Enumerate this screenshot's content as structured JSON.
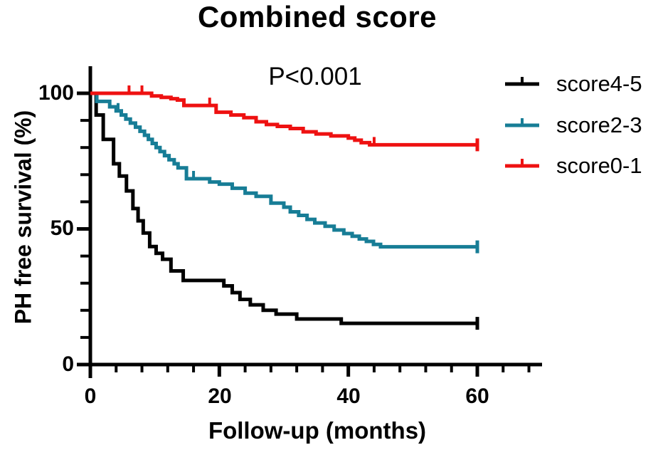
{
  "chart_data": {
    "type": "line",
    "subtype": "kaplan-meier-step",
    "title": "Combined score",
    "annotation": "P<0.001",
    "xlabel": "Follow-up (months)",
    "ylabel": "PH free survival (%)",
    "xlim": [
      0,
      70
    ],
    "ylim": [
      0,
      100
    ],
    "x_major_ticks": [
      0,
      20,
      40,
      60
    ],
    "x_minor_ticks": [
      4,
      8,
      12,
      16,
      24,
      28,
      32,
      36,
      44,
      48,
      52,
      56,
      64,
      68
    ],
    "y_major_ticks": [
      0,
      50,
      100
    ],
    "y_minor_ticks": [
      10,
      20,
      30,
      40,
      60,
      70,
      80,
      90
    ],
    "grid": false,
    "legend_position": "right",
    "axis_color": "#000000",
    "series": [
      {
        "name": "score4-5",
        "color": "#000000",
        "points": [
          [
            0,
            100
          ],
          [
            0.9,
            92
          ],
          [
            2,
            83
          ],
          [
            3.6,
            74
          ],
          [
            4.5,
            69.5
          ],
          [
            5.6,
            64
          ],
          [
            6.6,
            57.5
          ],
          [
            7.4,
            53
          ],
          [
            8.2,
            48.5
          ],
          [
            9.2,
            43.5
          ],
          [
            10.2,
            41
          ],
          [
            11.2,
            38.8
          ],
          [
            12.5,
            34.5
          ],
          [
            14.4,
            31
          ],
          [
            20.7,
            29
          ],
          [
            22,
            26.5
          ],
          [
            23.2,
            24
          ],
          [
            24.8,
            22
          ],
          [
            26.8,
            20
          ],
          [
            28.8,
            18.6
          ],
          [
            32,
            16.8
          ],
          [
            38.9,
            15.2
          ],
          [
            60,
            15.2
          ]
        ],
        "censor_marks": [],
        "end_tick_month": 60,
        "final_value": 15.2
      },
      {
        "name": "score2-3",
        "color": "#177d96",
        "points": [
          [
            0,
            100
          ],
          [
            1,
            97
          ],
          [
            3,
            95
          ],
          [
            4,
            93.5
          ],
          [
            4.8,
            92
          ],
          [
            5.5,
            90.5
          ],
          [
            6.2,
            89
          ],
          [
            7,
            87.5
          ],
          [
            7.7,
            86
          ],
          [
            8.4,
            84.5
          ],
          [
            9,
            83
          ],
          [
            9.6,
            81.5
          ],
          [
            10.2,
            80
          ],
          [
            10.8,
            78.5
          ],
          [
            11.5,
            77
          ],
          [
            12.2,
            75.5
          ],
          [
            13,
            74
          ],
          [
            13.6,
            72.5
          ],
          [
            14.9,
            68.5
          ],
          [
            18.5,
            67.3
          ],
          [
            20,
            66.5
          ],
          [
            22,
            65
          ],
          [
            24,
            63.2
          ],
          [
            25.7,
            62
          ],
          [
            28,
            59.5
          ],
          [
            30,
            58
          ],
          [
            31,
            56.3
          ],
          [
            32.3,
            55
          ],
          [
            33.6,
            53.5
          ],
          [
            34.8,
            52.2
          ],
          [
            36.4,
            51
          ],
          [
            37.8,
            49.6
          ],
          [
            39.3,
            48.3
          ],
          [
            40.6,
            47.3
          ],
          [
            41.7,
            46.3
          ],
          [
            42.8,
            45.4
          ],
          [
            43.9,
            44.3
          ],
          [
            45,
            43.4
          ],
          [
            60,
            43.4
          ]
        ],
        "censor_marks": [
          [
            4.3,
            93.5
          ],
          [
            16,
            68.5
          ]
        ],
        "end_tick_month": 60,
        "final_value": 43.4
      },
      {
        "name": "score0-1",
        "color": "#ee1111",
        "points": [
          [
            0,
            100
          ],
          [
            9.5,
            99
          ],
          [
            11,
            98.5
          ],
          [
            12.5,
            98
          ],
          [
            13.5,
            97.5
          ],
          [
            14.5,
            95.5
          ],
          [
            19.5,
            93
          ],
          [
            21.8,
            92
          ],
          [
            23.8,
            91
          ],
          [
            25.7,
            89.5
          ],
          [
            27.3,
            88.5
          ],
          [
            29,
            87.8
          ],
          [
            31,
            87
          ],
          [
            33,
            85.8
          ],
          [
            35,
            85
          ],
          [
            37.3,
            84.3
          ],
          [
            40,
            83.5
          ],
          [
            41,
            82.7
          ],
          [
            42,
            81.8
          ],
          [
            43.3,
            81
          ],
          [
            60,
            81
          ]
        ],
        "censor_marks": [
          [
            6,
            100
          ],
          [
            8,
            100
          ],
          [
            18.5,
            95.5
          ],
          [
            44,
            81
          ]
        ],
        "end_tick_month": 60,
        "final_value": 81
      }
    ]
  }
}
